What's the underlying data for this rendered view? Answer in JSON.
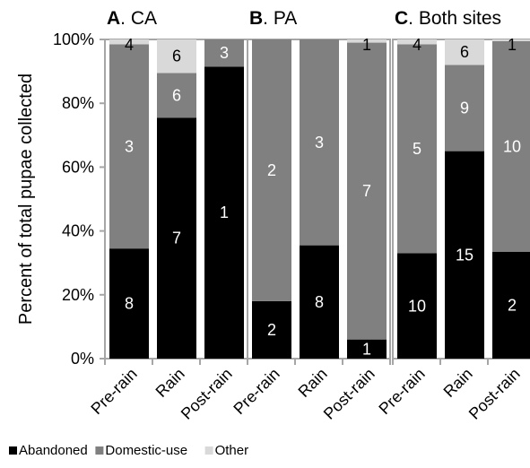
{
  "chart_data": {
    "type": "bar",
    "stacked": true,
    "ylabel": "Percent of total pupae collected",
    "yticks": [
      "0%",
      "20%",
      "40%",
      "60%",
      "80%",
      "100%"
    ],
    "ylim": [
      0,
      100
    ],
    "grid": false,
    "legend_position": "bottom-left",
    "colors": {
      "Abandoned": "#000000",
      "Domestic-use": "#808080",
      "Other": "#d9d9d9",
      "frame": "#a6a6a6"
    },
    "legend": [
      "Abandoned",
      "Domestic-use",
      "Other"
    ],
    "panels": [
      {
        "letter": "A",
        "title_rest": ". CA",
        "categories": [
          "Pre-rain",
          "Rain",
          "Post-rain"
        ],
        "series": [
          {
            "name": "Abandoned",
            "values": [
              34.5,
              75.5,
              91.5
            ],
            "labels": [
              "8",
              "7",
              "1"
            ]
          },
          {
            "name": "Domestic-use",
            "values": [
              64,
              14,
              8.5
            ],
            "labels": [
              "3",
              "6",
              "3"
            ]
          },
          {
            "name": "Other",
            "values": [
              1.5,
              10.5,
              0
            ],
            "labels": [
              "4",
              "6",
              ""
            ]
          }
        ]
      },
      {
        "letter": "B",
        "title_rest": ". PA",
        "categories": [
          "Pre-rain",
          "Rain",
          "Post-rain"
        ],
        "series": [
          {
            "name": "Abandoned",
            "values": [
              18,
              35.5,
              6
            ],
            "labels": [
              "2",
              "8",
              "1"
            ]
          },
          {
            "name": "Domestic-use",
            "values": [
              82,
              64.5,
              93
            ],
            "labels": [
              "2",
              "3",
              "7"
            ]
          },
          {
            "name": "Other",
            "values": [
              0,
              0,
              1
            ],
            "labels": [
              "",
              "",
              "1"
            ]
          }
        ]
      },
      {
        "letter": "C",
        "title_rest": ". Both sites",
        "categories": [
          "Pre-rain",
          "Rain",
          "Post-rain"
        ],
        "series": [
          {
            "name": "Abandoned",
            "values": [
              33,
              65,
              33.5
            ],
            "labels": [
              "10",
              "15",
              "2"
            ]
          },
          {
            "name": "Domestic-use",
            "values": [
              65.5,
              27,
              66
            ],
            "labels": [
              "5",
              "9",
              "10"
            ]
          },
          {
            "name": "Other",
            "values": [
              1.5,
              8,
              0.5
            ],
            "labels": [
              "4",
              "6",
              "1"
            ]
          }
        ]
      }
    ]
  }
}
